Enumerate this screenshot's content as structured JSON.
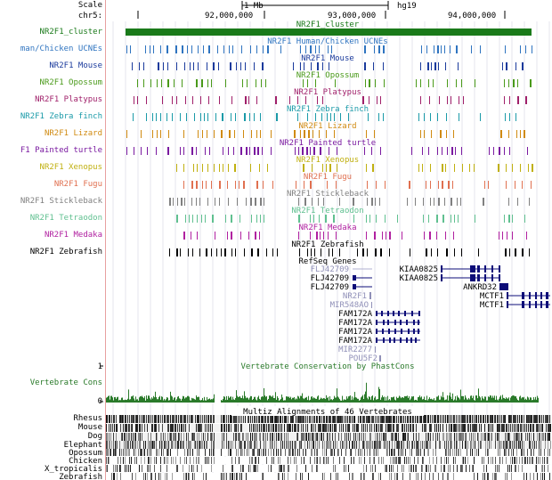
{
  "ruler": {
    "scale_label": "Scale",
    "chrom_label": "chr5:",
    "scale_bar_label": "1 Mb",
    "assembly": "hg19",
    "positions": [
      "92,000,000",
      "93,000,000",
      "94,000,000"
    ]
  },
  "tracks": [
    {
      "key": "cluster",
      "label": "NR2F1_cluster",
      "center": "NR2F1_cluster",
      "color": "#1a7a1a"
    },
    {
      "key": "human_chicken",
      "label": "man/Chicken UCNEs",
      "center": "NR2F1 Human/Chicken UCNEs",
      "color": "#2f74c0"
    },
    {
      "key": "mouse",
      "label": "NR2F1 Mouse",
      "center": "NR2F1 Mouse",
      "color": "#1a3a9c"
    },
    {
      "key": "opossum",
      "label": "NR2F1 Opossum",
      "center": "NR2F1 Opossum",
      "color": "#4a9a1a"
    },
    {
      "key": "platypus",
      "label": "NR2F1 Platypus",
      "center": "NR2F1 Platypus",
      "color": "#a0206a"
    },
    {
      "key": "zebrafinch",
      "label": "NR2F1 Zebra finch",
      "center": "NR2F1 Zebra finch",
      "color": "#1a9aa8"
    },
    {
      "key": "lizard",
      "label": "NR2F1 Lizard",
      "center": "NR2F1 Lizard",
      "color": "#d08a10"
    },
    {
      "key": "turtle",
      "label": "F1 Painted turtle",
      "center": "NR2F1 Painted turtle",
      "color": "#7a1aa0"
    },
    {
      "key": "xenopus",
      "label": "NR2F1 Xenopus",
      "center": "NR2F1 Xenopus",
      "color": "#c0b010"
    },
    {
      "key": "fugu",
      "label": "NR2F1 Fugu",
      "center": "NR2F1 Fugu",
      "color": "#e07050"
    },
    {
      "key": "stickleback",
      "label": "NR2F1 Stickleback",
      "center": "NR2F1 Stickleback",
      "color": "#808080"
    },
    {
      "key": "tetraodon",
      "label": "NR2F1 Tetraodon",
      "center": "NR2F1 Tetraodon",
      "color": "#60c090"
    },
    {
      "key": "medaka",
      "label": "NR2F1 Medaka",
      "center": "NR2F1 Medaka",
      "color": "#b020a0"
    },
    {
      "key": "zebrafish",
      "label": "NR2F1 Zebrafish",
      "center": "NR2F1 Zebrafish",
      "color": "#000000"
    }
  ],
  "refseq": {
    "title": "RefSeq Genes",
    "genes": [
      "FLJ42709",
      "FLJ42709",
      "FLJ42709",
      "NR2F1",
      "MIR548AO",
      "FAM172A",
      "FAM172A",
      "FAM172A",
      "FAM172A",
      "MIR2277",
      "POU5F2",
      "KIAA0825",
      "KIAA0825",
      "ANKRD32",
      "MCTF1",
      "MCTF1"
    ]
  },
  "conservation": {
    "label": "Vertebrate Cons",
    "title": "Vertebrate Conservation by PhastCons",
    "max": "1",
    "min": "0",
    "color": "#2a7a2a"
  },
  "multiz": {
    "title": "Multiz Alignments of 46 Vertebrates",
    "species": [
      "Rhesus",
      "Mouse",
      "Dog",
      "Elephant",
      "Opossum",
      "Chicken",
      "X_tropicalis",
      "Zebrafish"
    ]
  }
}
